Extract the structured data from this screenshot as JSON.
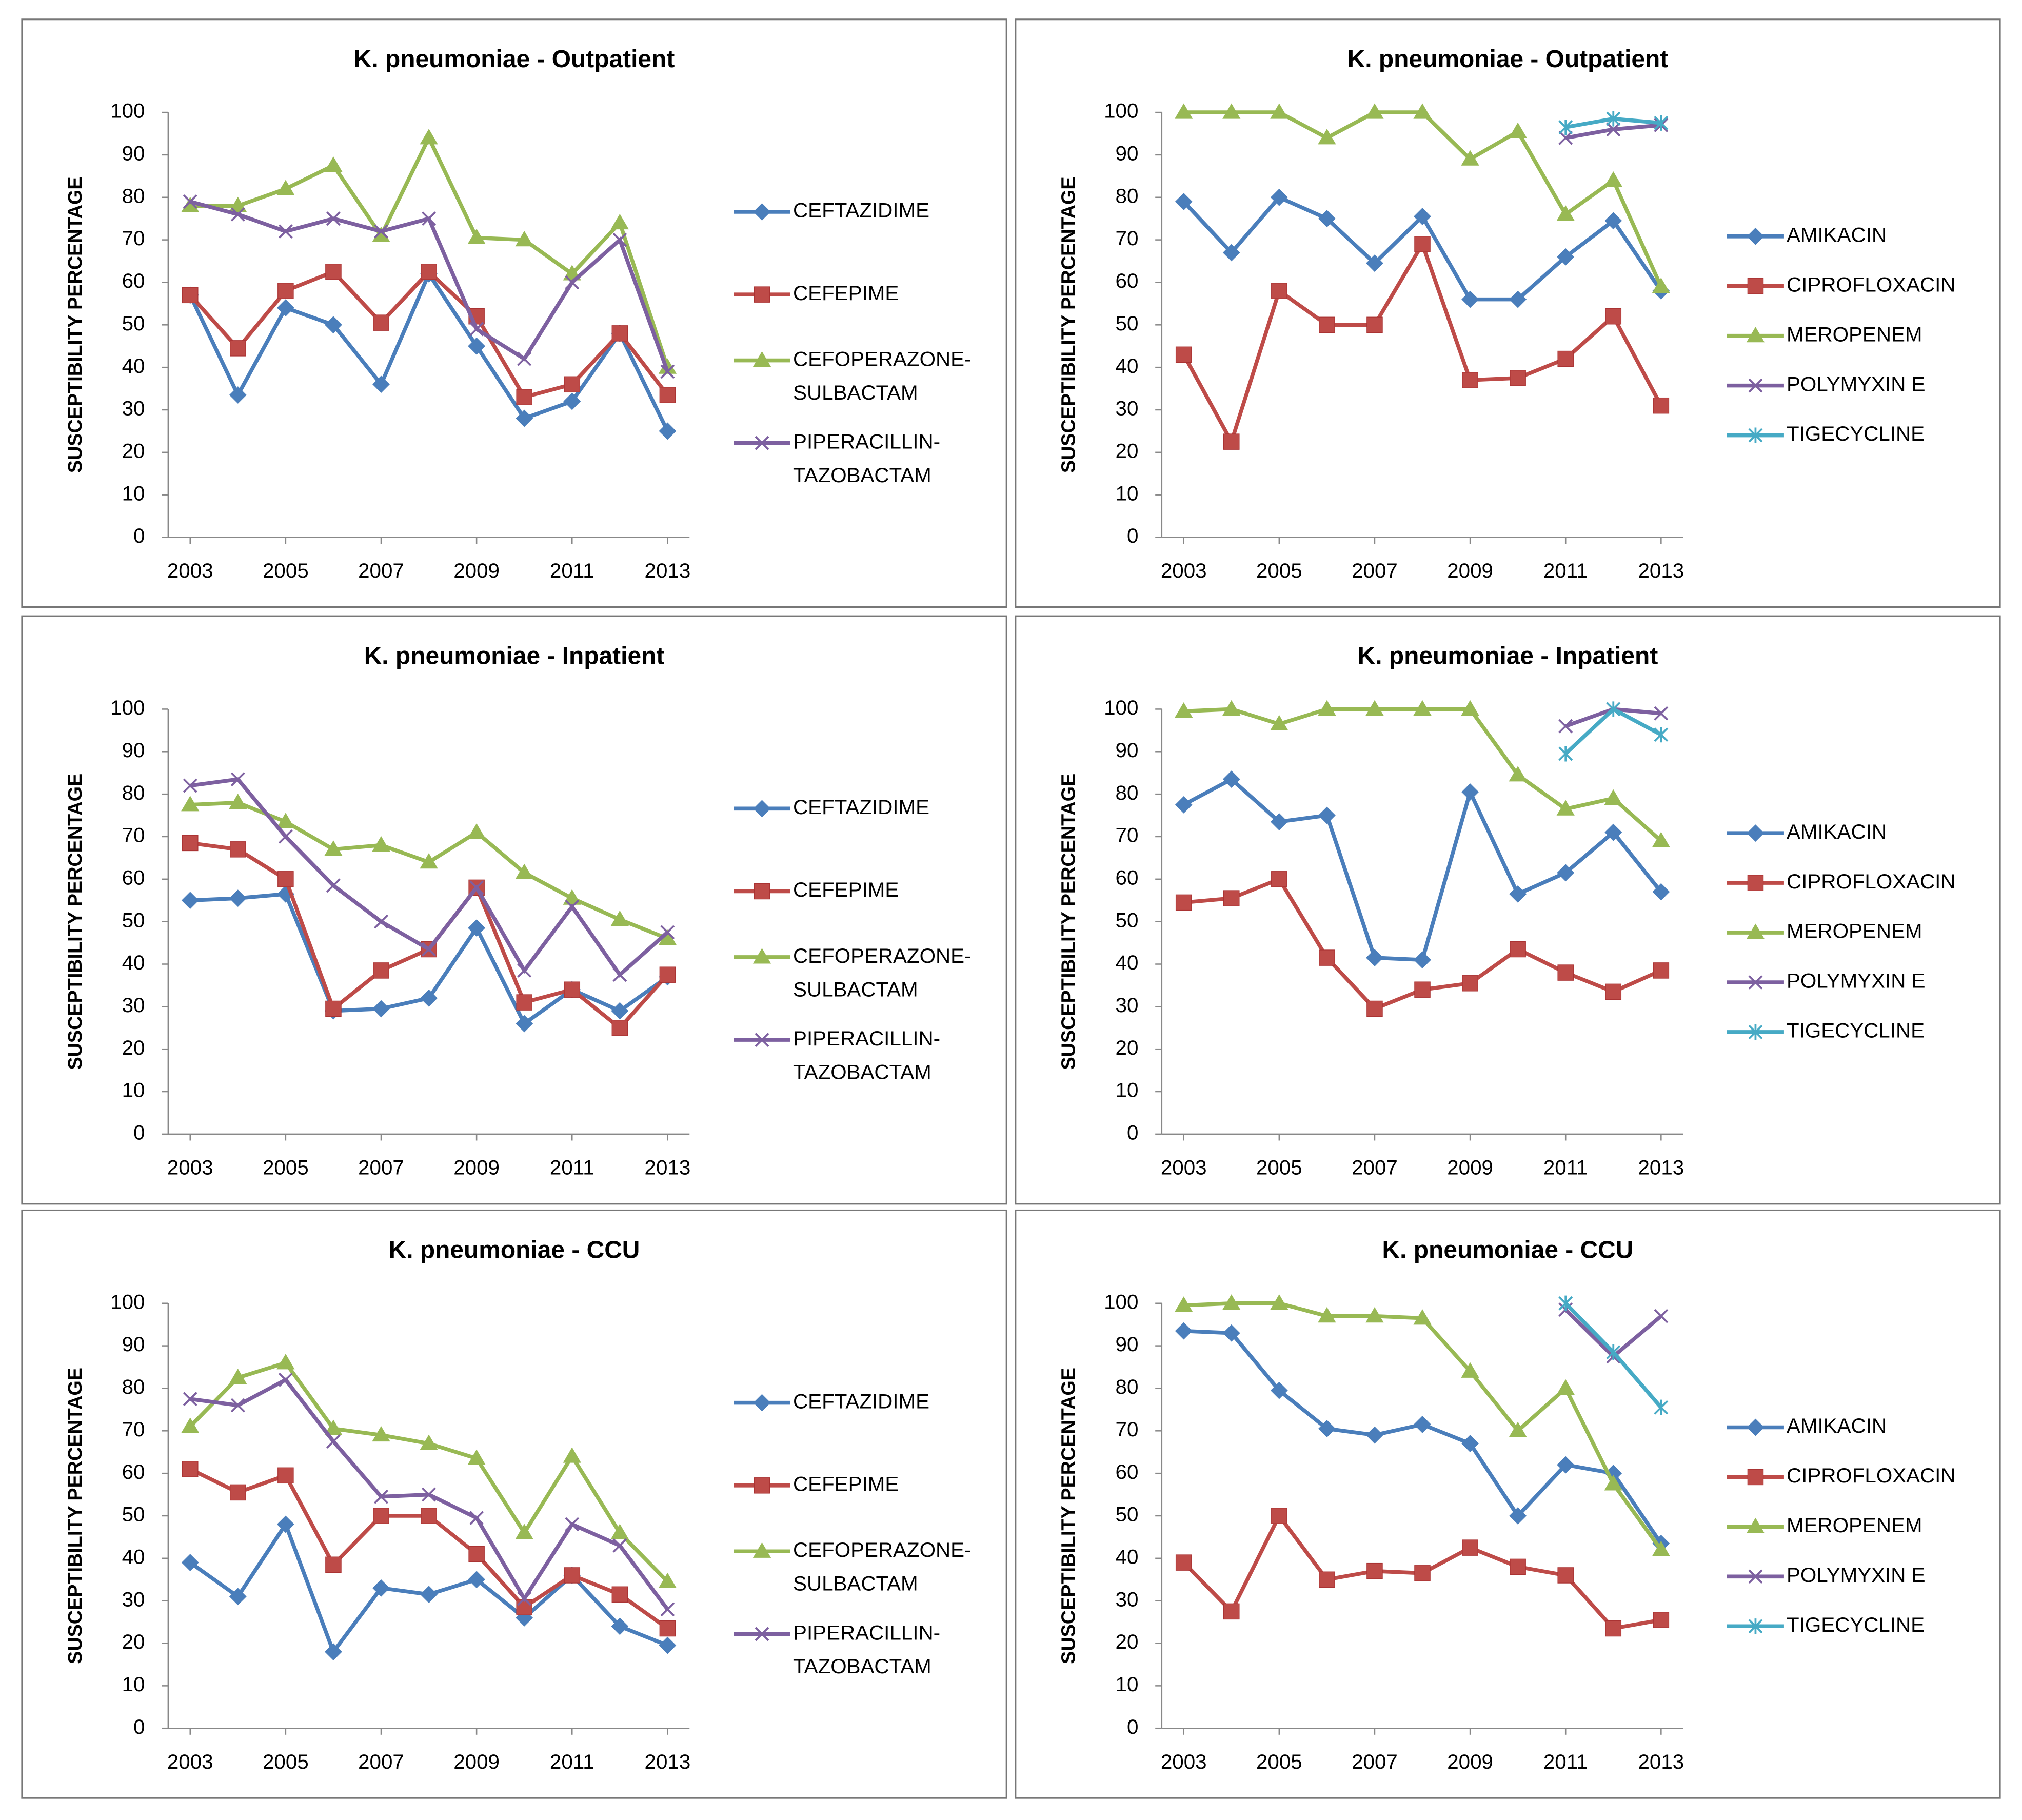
{
  "chart_data": [
    {
      "type": "line",
      "title": "K. pneumoniae - Outpatient",
      "y_label": "SUSCEPTIBILITY PERCENTAGE",
      "x": [
        2003,
        2004,
        2005,
        2006,
        2007,
        2008,
        2009,
        2010,
        2011,
        2012,
        2013
      ],
      "xlim": [
        2003,
        2013
      ],
      "xticks": [
        2003,
        2005,
        2007,
        2009,
        2011,
        2013
      ],
      "ylim": [
        0,
        100
      ],
      "yticks": [
        0,
        10,
        20,
        30,
        40,
        50,
        60,
        70,
        80,
        90,
        100
      ],
      "series": [
        {
          "name": "CEFTAZIDIME",
          "color": "#4a7ebb",
          "marker": "diamond",
          "values": [
            57,
            33.5,
            54,
            50,
            36,
            62,
            45,
            28,
            32,
            48,
            25
          ]
        },
        {
          "name": "CEFEPIME",
          "color": "#be4b48",
          "marker": "square",
          "values": [
            57,
            44.5,
            58,
            62.5,
            50.5,
            62.5,
            52,
            33,
            36,
            48,
            33.5
          ]
        },
        {
          "name": "CEFOPERAZONE-SULBACTAM",
          "color": "#98b954",
          "marker": "triangle",
          "values": [
            78,
            78,
            82,
            87.5,
            71,
            94,
            70.5,
            70,
            62,
            74,
            40
          ]
        },
        {
          "name": "PIPERACILLIN-TAZOBACTAM",
          "color": "#7d60a0",
          "marker": "x",
          "values": [
            79,
            76,
            72,
            75,
            72,
            75,
            49,
            42,
            60,
            70,
            39
          ]
        }
      ]
    },
    {
      "type": "line",
      "title": "K. pneumoniae - Outpatient",
      "y_label": "SUSCEPTIBILITY PERCENTAGE",
      "x": [
        2003,
        2004,
        2005,
        2006,
        2007,
        2008,
        2009,
        2010,
        2011,
        2012,
        2013
      ],
      "xlim": [
        2003,
        2013
      ],
      "xticks": [
        2003,
        2005,
        2007,
        2009,
        2011,
        2013
      ],
      "ylim": [
        0,
        100
      ],
      "yticks": [
        0,
        10,
        20,
        30,
        40,
        50,
        60,
        70,
        80,
        90,
        100
      ],
      "series": [
        {
          "name": "AMIKACIN",
          "color": "#4a7ebb",
          "marker": "diamond",
          "values": [
            79,
            67,
            80,
            75,
            64.5,
            75.5,
            56,
            56,
            66,
            74.5,
            58
          ]
        },
        {
          "name": "CIPROFLOXACIN",
          "color": "#be4b48",
          "marker": "square",
          "values": [
            43,
            22.5,
            58,
            50,
            50,
            69,
            37,
            37.5,
            42,
            52,
            31
          ]
        },
        {
          "name": "MEROPENEM",
          "color": "#98b954",
          "marker": "triangle",
          "values": [
            100,
            100,
            100,
            94,
            100,
            100,
            89,
            95.5,
            76,
            84,
            59
          ]
        },
        {
          "name": "POLYMYXIN E",
          "color": "#7d60a0",
          "marker": "x",
          "values": [
            null,
            null,
            null,
            null,
            null,
            null,
            null,
            null,
            94,
            96,
            97
          ]
        },
        {
          "name": "TIGECYCLINE",
          "color": "#46aac5",
          "marker": "star",
          "values": [
            null,
            null,
            null,
            null,
            null,
            null,
            null,
            null,
            96.5,
            98.5,
            97.5
          ]
        }
      ]
    },
    {
      "type": "line",
      "title": "K. pneumoniae - Inpatient",
      "y_label": "SUSCEPTIBILITY PERCENTAGE",
      "x": [
        2003,
        2004,
        2005,
        2006,
        2007,
        2008,
        2009,
        2010,
        2011,
        2012,
        2013
      ],
      "xlim": [
        2003,
        2013
      ],
      "xticks": [
        2003,
        2005,
        2007,
        2009,
        2011,
        2013
      ],
      "ylim": [
        0,
        100
      ],
      "yticks": [
        0,
        10,
        20,
        30,
        40,
        50,
        60,
        70,
        80,
        90,
        100
      ],
      "series": [
        {
          "name": "CEFTAZIDIME",
          "color": "#4a7ebb",
          "marker": "diamond",
          "values": [
            55,
            55.5,
            56.5,
            29,
            29.5,
            32,
            48.5,
            26,
            34,
            29,
            37
          ]
        },
        {
          "name": "CEFEPIME",
          "color": "#be4b48",
          "marker": "square",
          "values": [
            68.5,
            67,
            60,
            29.5,
            38.5,
            43.5,
            58,
            31,
            34,
            25,
            37.5
          ]
        },
        {
          "name": "CEFOPERAZONE-SULBACTAM",
          "color": "#98b954",
          "marker": "triangle",
          "values": [
            77.5,
            78,
            73.5,
            67,
            68,
            64,
            71,
            61.5,
            55.5,
            50.5,
            46
          ]
        },
        {
          "name": "PIPERACILLIN-TAZOBACTAM",
          "color": "#7d60a0",
          "marker": "x",
          "values": [
            82,
            83.5,
            70,
            58.5,
            50,
            43.5,
            58,
            38.5,
            53.5,
            37.5,
            47.5
          ]
        }
      ]
    },
    {
      "type": "line",
      "title": "K. pneumoniae - Inpatient",
      "y_label": "SUSCEPTIBILITY PERCENTAGE",
      "x": [
        2003,
        2004,
        2005,
        2006,
        2007,
        2008,
        2009,
        2010,
        2011,
        2012,
        2013
      ],
      "xlim": [
        2003,
        2013
      ],
      "xticks": [
        2003,
        2005,
        2007,
        2009,
        2011,
        2013
      ],
      "ylim": [
        0,
        100
      ],
      "yticks": [
        0,
        10,
        20,
        30,
        40,
        50,
        60,
        70,
        80,
        90,
        100
      ],
      "series": [
        {
          "name": "AMIKACIN",
          "color": "#4a7ebb",
          "marker": "diamond",
          "values": [
            77.5,
            83.5,
            73.5,
            75,
            41.5,
            41,
            80.5,
            56.5,
            61.5,
            71,
            57
          ]
        },
        {
          "name": "CIPROFLOXACIN",
          "color": "#be4b48",
          "marker": "square",
          "values": [
            54.5,
            55.5,
            60,
            41.5,
            29.5,
            34,
            35.5,
            43.5,
            38,
            33.5,
            38.5
          ]
        },
        {
          "name": "MEROPENEM",
          "color": "#98b954",
          "marker": "triangle",
          "values": [
            99.5,
            100,
            96.5,
            100,
            100,
            100,
            100,
            84.5,
            76.5,
            79,
            69
          ]
        },
        {
          "name": "POLYMYXIN E",
          "color": "#7d60a0",
          "marker": "x",
          "values": [
            null,
            null,
            null,
            null,
            null,
            null,
            null,
            null,
            96,
            100,
            99
          ]
        },
        {
          "name": "TIGECYCLINE",
          "color": "#46aac5",
          "marker": "star",
          "values": [
            null,
            null,
            null,
            null,
            null,
            null,
            null,
            null,
            89.5,
            100,
            94
          ]
        }
      ]
    },
    {
      "type": "line",
      "title": "K. pneumoniae - CCU",
      "y_label": "SUSCEPTIBILITY PERCENTAGE",
      "x": [
        2003,
        2004,
        2005,
        2006,
        2007,
        2008,
        2009,
        2010,
        2011,
        2012,
        2013
      ],
      "xlim": [
        2003,
        2013
      ],
      "xticks": [
        2003,
        2005,
        2007,
        2009,
        2011,
        2013
      ],
      "ylim": [
        0,
        100
      ],
      "yticks": [
        0,
        10,
        20,
        30,
        40,
        50,
        60,
        70,
        80,
        90,
        100
      ],
      "series": [
        {
          "name": "CEFTAZIDIME",
          "color": "#4a7ebb",
          "marker": "diamond",
          "values": [
            39,
            31,
            48,
            18,
            33,
            31.5,
            35,
            26,
            36,
            24,
            19.5
          ]
        },
        {
          "name": "CEFEPIME",
          "color": "#be4b48",
          "marker": "square",
          "values": [
            61,
            55.5,
            59.5,
            38.5,
            50,
            50,
            41,
            28.5,
            36,
            31.5,
            23.5
          ]
        },
        {
          "name": "CEFOPERAZONE-SULBACTAM",
          "color": "#98b954",
          "marker": "triangle",
          "values": [
            71,
            82.5,
            86,
            70.5,
            69,
            67,
            63.5,
            46,
            64,
            46,
            34.5
          ]
        },
        {
          "name": "PIPERACILLIN-TAZOBACTAM",
          "color": "#7d60a0",
          "marker": "x",
          "values": [
            77.5,
            76,
            82,
            67.5,
            54.5,
            55,
            49.5,
            30.5,
            48,
            43,
            28
          ]
        }
      ]
    },
    {
      "type": "line",
      "title": "K. pneumoniae - CCU",
      "y_label": "SUSCEPTIBILITY PERCENTAGE",
      "x": [
        2003,
        2004,
        2005,
        2006,
        2007,
        2008,
        2009,
        2010,
        2011,
        2012,
        2013
      ],
      "xlim": [
        2003,
        2013
      ],
      "xticks": [
        2003,
        2005,
        2007,
        2009,
        2011,
        2013
      ],
      "ylim": [
        0,
        100
      ],
      "yticks": [
        0,
        10,
        20,
        30,
        40,
        50,
        60,
        70,
        80,
        90,
        100
      ],
      "series": [
        {
          "name": "AMIKACIN",
          "color": "#4a7ebb",
          "marker": "diamond",
          "values": [
            93.5,
            93,
            79.5,
            70.5,
            69,
            71.5,
            67,
            50,
            62,
            60,
            43.5
          ]
        },
        {
          "name": "CIPROFLOXACIN",
          "color": "#be4b48",
          "marker": "square",
          "values": [
            39,
            27.5,
            50,
            35,
            37,
            36.5,
            42.5,
            38,
            36,
            23.5,
            25.5
          ]
        },
        {
          "name": "MEROPENEM",
          "color": "#98b954",
          "marker": "triangle",
          "values": [
            99.5,
            100,
            100,
            97,
            97,
            96.5,
            84,
            70,
            80,
            57.5,
            42
          ]
        },
        {
          "name": "POLYMYXIN E",
          "color": "#7d60a0",
          "marker": "x",
          "values": [
            null,
            null,
            null,
            null,
            null,
            null,
            null,
            null,
            98.5,
            87.5,
            97
          ]
        },
        {
          "name": "TIGECYCLINE",
          "color": "#46aac5",
          "marker": "star",
          "values": [
            null,
            null,
            null,
            null,
            null,
            null,
            null,
            null,
            100,
            88.5,
            75.5
          ]
        }
      ]
    }
  ]
}
